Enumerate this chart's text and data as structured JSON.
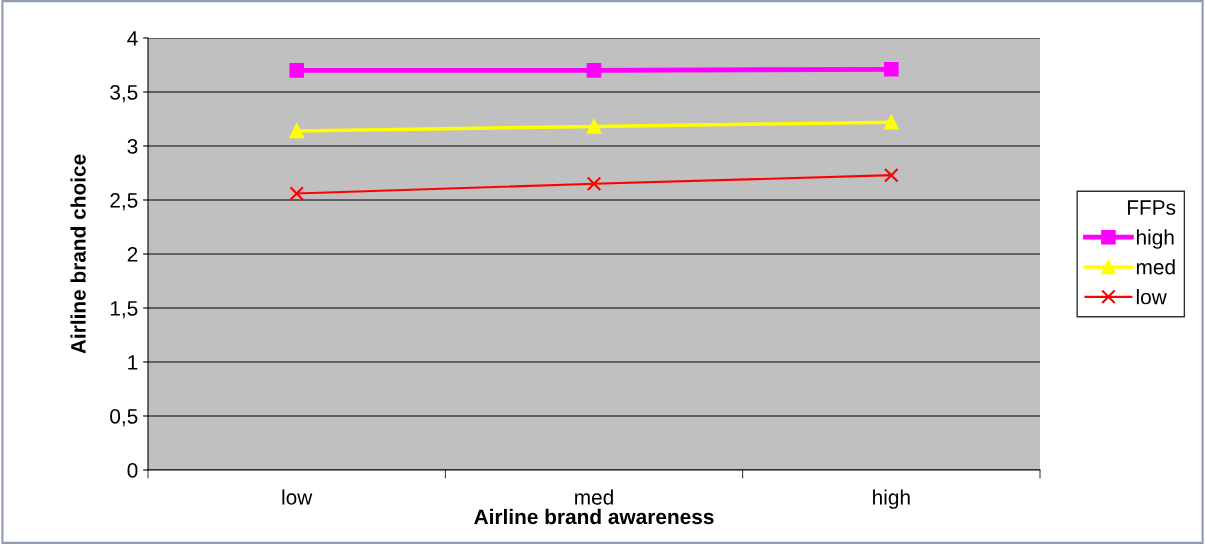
{
  "chart_data": {
    "type": "line",
    "xlabel": "Airline brand awareness",
    "ylabel": "Airline brand choice",
    "legend_title": "FFPs",
    "categories": [
      "low",
      "med",
      "high"
    ],
    "series": [
      {
        "name": "high",
        "color": "#ff00ff",
        "marker": "square",
        "values": [
          3.7,
          3.7,
          3.71
        ]
      },
      {
        "name": "med",
        "color": "#ffff00",
        "marker": "triangle",
        "values": [
          3.14,
          3.18,
          3.22
        ]
      },
      {
        "name": "low",
        "color": "#ff0000",
        "marker": "cross",
        "values": [
          2.56,
          2.65,
          2.73
        ]
      }
    ],
    "ylim": [
      0,
      4
    ],
    "yticks": [
      0,
      {
        "value": 0.5,
        "label": "0,5"
      },
      1,
      {
        "value": 1.5,
        "label": "1,5"
      },
      2,
      {
        "value": 2.5,
        "label": "2,5"
      },
      3,
      {
        "value": 3.5,
        "label": "3,5"
      },
      4
    ],
    "grid": "y",
    "legend": "right",
    "line_style": "solid"
  }
}
